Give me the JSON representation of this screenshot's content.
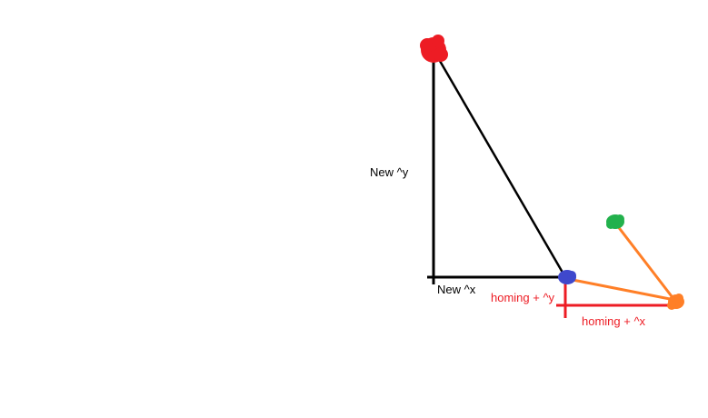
{
  "labels": {
    "new_dy": "New ^y",
    "new_dx": "New ^x",
    "homing_dy": "homing + ^y",
    "homing_dx": "homing + ^x"
  },
  "colors": {
    "black": "#000000",
    "red_point": "#ed1c24",
    "blue_point": "#3f48cc",
    "green_point": "#22b14c",
    "orange_point": "#ff7f27",
    "homing_lines": "#ed1c24",
    "homing_text": "#ed1c24"
  }
}
